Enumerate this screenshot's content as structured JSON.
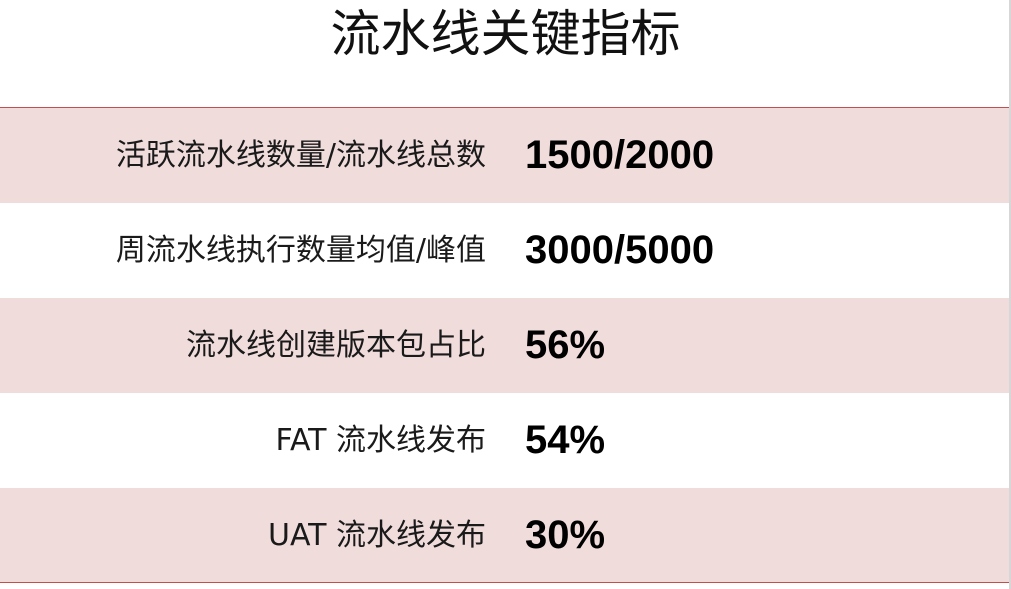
{
  "title": "流水线关键指标",
  "colors": {
    "row_shade": "#f1dcdc",
    "rule": "#c0504d"
  },
  "metrics": [
    {
      "label": "活跃流水线数量/流水线总数",
      "value": "1500/2000"
    },
    {
      "label": "周流水线执行数量均值/峰值",
      "value": "3000/5000"
    },
    {
      "label": "流水线创建版本包占比",
      "value": "56%"
    },
    {
      "label": "FAT 流水线发布",
      "value": "54%"
    },
    {
      "label": "UAT 流水线发布",
      "value": "30%"
    }
  ]
}
